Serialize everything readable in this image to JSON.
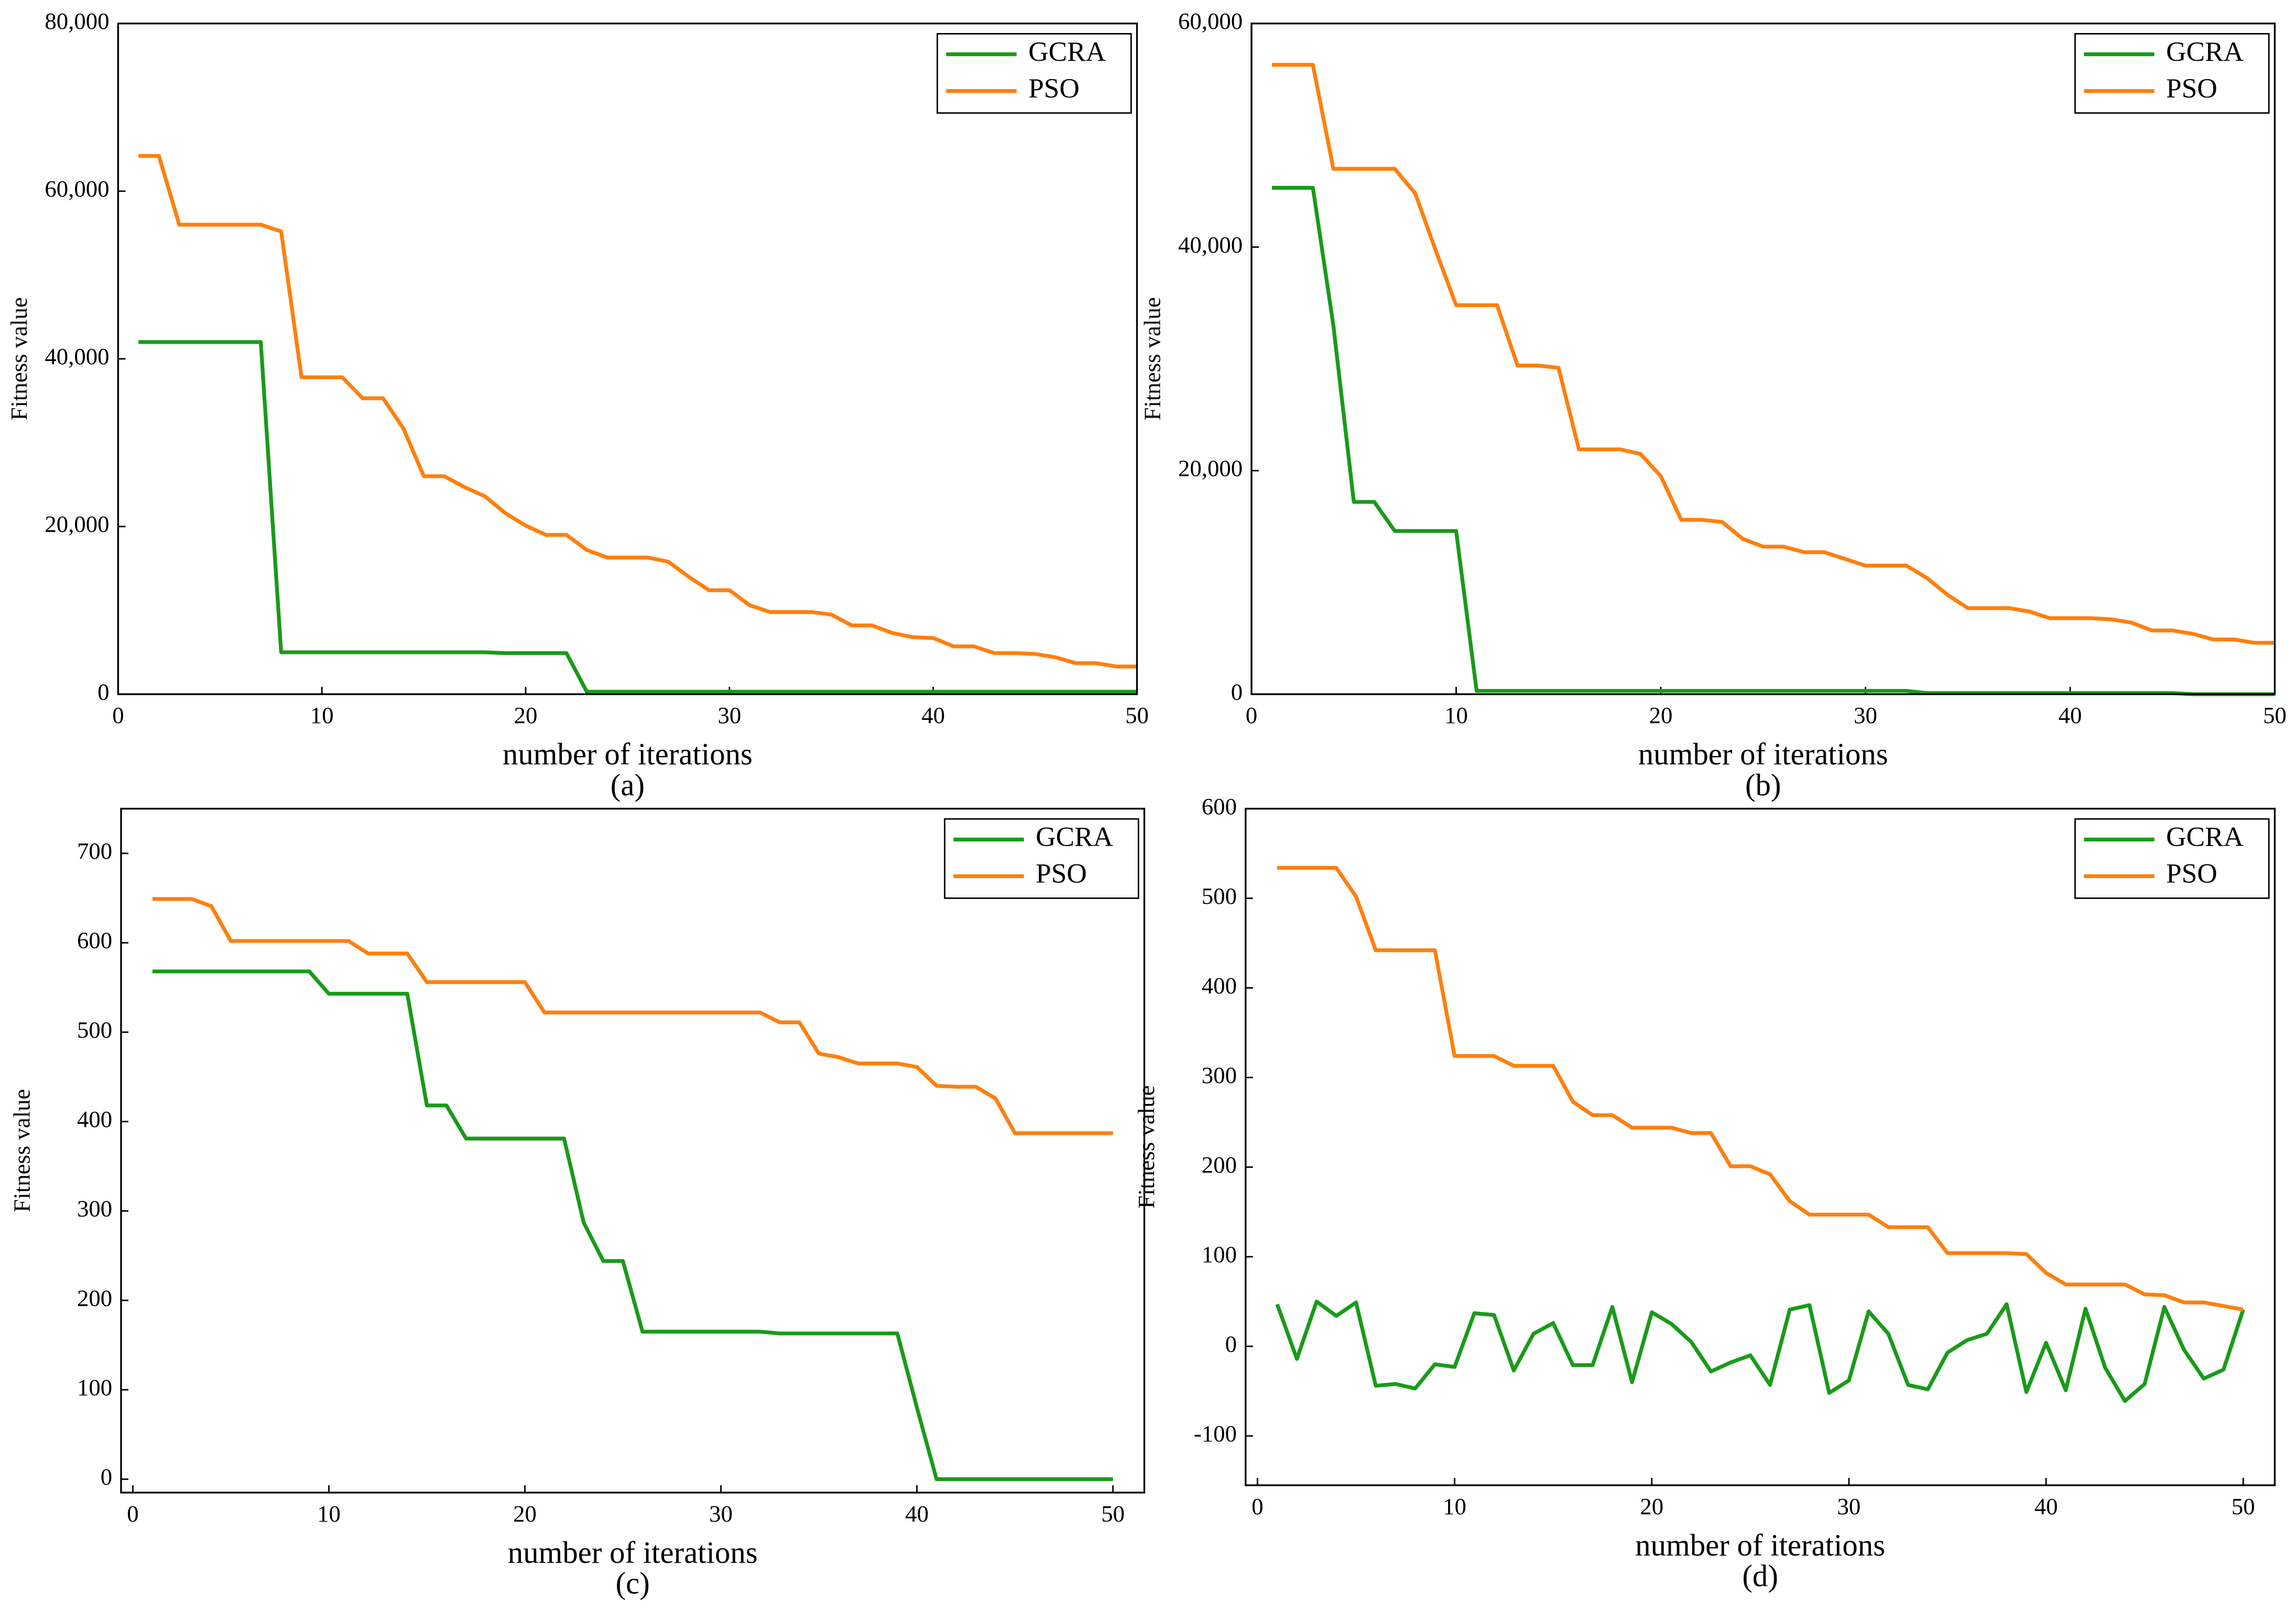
{
  "chart_data": [
    {
      "type": "line",
      "caption": "(a)",
      "xlabel": "number of iterations",
      "ylabel": "Fitness value",
      "x": [
        1,
        2,
        3,
        4,
        5,
        6,
        7,
        8,
        9,
        10,
        11,
        12,
        13,
        14,
        15,
        16,
        17,
        18,
        19,
        20,
        21,
        22,
        23,
        24,
        25,
        26,
        27,
        28,
        29,
        30,
        31,
        32,
        33,
        34,
        35,
        36,
        37,
        38,
        39,
        40,
        41,
        42,
        43,
        44,
        45,
        46,
        47,
        48,
        49,
        50
      ],
      "xlim": [
        0,
        50
      ],
      "xticks": [
        0,
        10,
        20,
        30,
        40,
        50
      ],
      "ylim": [
        0,
        80000
      ],
      "yticks": [
        0,
        {
          "value": 20000,
          "label": "20,000"
        },
        {
          "value": 40000,
          "label": "40,000"
        },
        {
          "value": 60000,
          "label": "60,000"
        },
        {
          "value": 80000,
          "label": "80,000"
        }
      ],
      "series": [
        {
          "name": "GCRA",
          "color": "#1a9a1a",
          "values": [
            42000,
            42000,
            42000,
            42000,
            42000,
            42000,
            42000,
            5000,
            5000,
            5000,
            5000,
            5000,
            5000,
            5000,
            5000,
            5000,
            5000,
            5000,
            4900,
            4900,
            4900,
            4900,
            300,
            300,
            300,
            300,
            300,
            300,
            300,
            300,
            300,
            300,
            300,
            300,
            300,
            300,
            300,
            300,
            300,
            300,
            300,
            300,
            300,
            300,
            300,
            300,
            300,
            300,
            300,
            300
          ]
        },
        {
          "name": "PSO",
          "color": "#ff7f0e",
          "values": [
            64200,
            64200,
            56000,
            56000,
            56000,
            56000,
            56000,
            55200,
            37800,
            37800,
            37800,
            35300,
            35300,
            31700,
            26000,
            26000,
            24700,
            23600,
            21600,
            20100,
            19000,
            19000,
            17200,
            16300,
            16300,
            16300,
            15800,
            14000,
            12400,
            12400,
            10600,
            9800,
            9800,
            9800,
            9500,
            8200,
            8200,
            7300,
            6800,
            6700,
            5700,
            5700,
            4900,
            4900,
            4800,
            4400,
            3700,
            3700,
            3300,
            3300
          ]
        }
      ]
    },
    {
      "type": "line",
      "caption": "(b)",
      "xlabel": "number of iterations",
      "ylabel": "Fitness value",
      "x": [
        1,
        2,
        3,
        4,
        5,
        6,
        7,
        8,
        9,
        10,
        11,
        12,
        13,
        14,
        15,
        16,
        17,
        18,
        19,
        20,
        21,
        22,
        23,
        24,
        25,
        26,
        27,
        28,
        29,
        30,
        31,
        32,
        33,
        34,
        35,
        36,
        37,
        38,
        39,
        40,
        41,
        42,
        43,
        44,
        45,
        46,
        47,
        48,
        49,
        50
      ],
      "xlim": [
        0,
        50
      ],
      "xticks": [
        0,
        10,
        20,
        30,
        40,
        50
      ],
      "ylim": [
        0,
        60000
      ],
      "yticks": [
        0,
        {
          "value": 20000,
          "label": "20,000"
        },
        {
          "value": 40000,
          "label": "40,000"
        },
        {
          "value": 60000,
          "label": "60,000"
        }
      ],
      "series": [
        {
          "name": "GCRA",
          "color": "#1a9a1a",
          "values": [
            45300,
            45300,
            45300,
            33000,
            17200,
            17200,
            14600,
            14600,
            14600,
            14600,
            300,
            300,
            300,
            300,
            300,
            300,
            300,
            300,
            300,
            300,
            300,
            300,
            300,
            300,
            300,
            300,
            300,
            300,
            300,
            300,
            300,
            300,
            100,
            100,
            100,
            100,
            100,
            100,
            100,
            100,
            100,
            100,
            100,
            100,
            100,
            0,
            0,
            0,
            0,
            0
          ]
        },
        {
          "name": "PSO",
          "color": "#ff7f0e",
          "values": [
            56300,
            56300,
            56300,
            47000,
            47000,
            47000,
            47000,
            44800,
            39700,
            34800,
            34800,
            34800,
            29400,
            29400,
            29200,
            21900,
            21900,
            21900,
            21500,
            19500,
            15600,
            15600,
            15400,
            13900,
            13200,
            13200,
            12700,
            12700,
            12100,
            11500,
            11500,
            11500,
            10400,
            8900,
            7700,
            7700,
            7700,
            7400,
            6800,
            6800,
            6800,
            6700,
            6400,
            5700,
            5700,
            5400,
            4900,
            4900,
            4600,
            4600
          ]
        }
      ]
    },
    {
      "type": "line",
      "caption": "(c)",
      "xlabel": "number of iterations",
      "ylabel": "Fitness value",
      "x": [
        1,
        2,
        3,
        4,
        5,
        6,
        7,
        8,
        9,
        10,
        11,
        12,
        13,
        14,
        15,
        16,
        17,
        18,
        19,
        20,
        21,
        22,
        23,
        24,
        25,
        26,
        27,
        28,
        29,
        30,
        31,
        32,
        33,
        34,
        35,
        36,
        37,
        38,
        39,
        40,
        41,
        42,
        43,
        44,
        45,
        46,
        47,
        48,
        49,
        50
      ],
      "xlim": [
        -0.6,
        51.6
      ],
      "xticks": [
        0,
        10,
        20,
        30,
        40,
        50
      ],
      "ylim": [
        -15,
        750
      ],
      "yticks": [
        0,
        100,
        200,
        300,
        400,
        500,
        600,
        700
      ],
      "series": [
        {
          "name": "GCRA",
          "color": "#1a9a1a",
          "values": [
            568,
            568,
            568,
            568,
            568,
            568,
            568,
            568,
            568,
            543,
            543,
            543,
            543,
            543,
            418,
            418,
            381,
            381,
            381,
            381,
            381,
            381,
            287,
            244,
            244,
            165,
            165,
            165,
            165,
            165,
            165,
            165,
            163,
            163,
            163,
            163,
            163,
            163,
            163,
            80,
            0,
            0,
            0,
            0,
            0,
            0,
            0,
            0,
            0,
            0
          ]
        },
        {
          "name": "PSO",
          "color": "#ff7f0e",
          "values": [
            649,
            649,
            649,
            641,
            602,
            602,
            602,
            602,
            602,
            602,
            602,
            588,
            588,
            588,
            556,
            556,
            556,
            556,
            556,
            556,
            522,
            522,
            522,
            522,
            522,
            522,
            522,
            522,
            522,
            522,
            522,
            522,
            511,
            511,
            476,
            472,
            465,
            465,
            465,
            461,
            440,
            439,
            439,
            426,
            387,
            387,
            387,
            387,
            387,
            387
          ]
        }
      ]
    },
    {
      "type": "line",
      "caption": "(d)",
      "xlabel": "number of iterations",
      "ylabel": "Fitness value",
      "x": [
        1,
        2,
        3,
        4,
        5,
        6,
        7,
        8,
        9,
        10,
        11,
        12,
        13,
        14,
        15,
        16,
        17,
        18,
        19,
        20,
        21,
        22,
        23,
        24,
        25,
        26,
        27,
        28,
        29,
        30,
        31,
        32,
        33,
        34,
        35,
        36,
        37,
        38,
        39,
        40,
        41,
        42,
        43,
        44,
        45,
        46,
        47,
        48,
        49,
        50
      ],
      "xlim": [
        -0.6,
        51.6
      ],
      "xticks": [
        0,
        10,
        20,
        30,
        40,
        50
      ],
      "ylim": [
        -155,
        600
      ],
      "yticks": [
        -100,
        0,
        100,
        200,
        300,
        400,
        500,
        600
      ],
      "series": [
        {
          "name": "GCRA",
          "color": "#1a9a1a",
          "values": [
            47,
            -14,
            50,
            34,
            49,
            -44,
            -42,
            -47,
            -20,
            -23,
            37,
            35,
            -27,
            14,
            26,
            -21,
            -21,
            44,
            -40,
            38,
            25,
            5,
            -28,
            -18,
            -10,
            -43,
            41,
            46,
            -52,
            -38,
            39,
            14,
            -43,
            -48,
            -7,
            7,
            14,
            47,
            -51,
            4,
            -49,
            42,
            -24,
            -61,
            -42,
            44,
            -4,
            -36,
            -26,
            41
          ]
        },
        {
          "name": "PSO",
          "color": "#ff7f0e",
          "values": [
            534,
            534,
            534,
            534,
            502,
            442,
            442,
            442,
            442,
            324,
            324,
            324,
            313,
            313,
            313,
            273,
            258,
            258,
            244,
            244,
            244,
            238,
            238,
            201,
            201,
            192,
            162,
            147,
            147,
            147,
            147,
            133,
            133,
            133,
            104,
            104,
            104,
            104,
            103,
            82,
            69,
            69,
            69,
            69,
            58,
            57,
            49,
            49,
            45,
            41
          ]
        }
      ]
    }
  ]
}
